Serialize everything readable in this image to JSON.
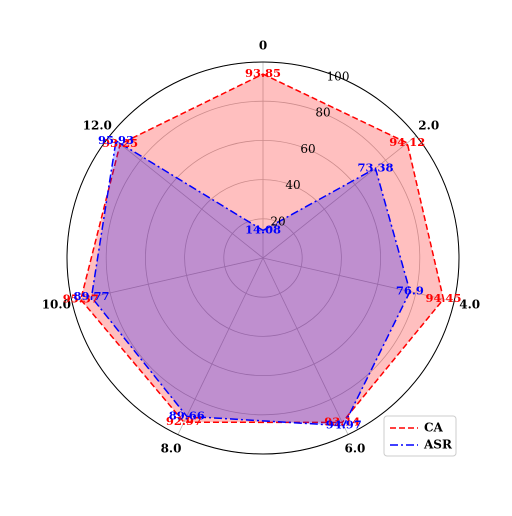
{
  "chart_data": {
    "type": "radar",
    "categories": [
      "0",
      "2.0",
      "4.0",
      "6.0",
      "8.0",
      "10.0",
      "12.0"
    ],
    "ylim": [
      0,
      100
    ],
    "yticks": [
      20,
      40,
      60,
      80,
      100
    ],
    "grid": true,
    "legend": "lower right",
    "series": [
      {
        "name": "CA",
        "color": "#ff0000",
        "style": "dashed",
        "values": [
          93.85,
          94.12,
          94.45,
          93.14,
          92.97,
          95.37,
          93.25
        ]
      },
      {
        "name": "ASR",
        "color": "#0000ff",
        "style": "dashdot",
        "values": [
          14.08,
          73.38,
          76.9,
          94.97,
          89.66,
          89.77,
          95.93
        ]
      }
    ]
  }
}
